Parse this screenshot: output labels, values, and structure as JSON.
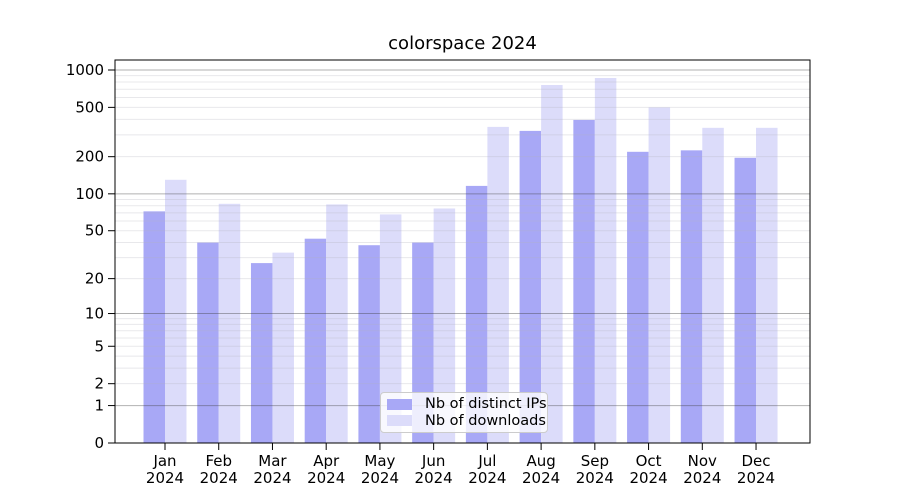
{
  "title": "colorspace 2024",
  "chart_data": {
    "type": "bar",
    "title": "colorspace 2024",
    "categories": [
      "Jan",
      "Feb",
      "Mar",
      "Apr",
      "May",
      "Jun",
      "Jul",
      "Aug",
      "Sep",
      "Oct",
      "Nov",
      "Dec"
    ],
    "x_tick_year": "2024",
    "series": [
      {
        "name": "Nb of distinct IPs",
        "color": "#a8a8f6",
        "values": [
          72,
          40,
          27,
          43,
          38,
          40,
          116,
          323,
          396,
          219,
          225,
          196
        ]
      },
      {
        "name": "Nb of downloads",
        "color": "#dcdcfa",
        "values": [
          130,
          83,
          33,
          82,
          68,
          76,
          348,
          757,
          862,
          500,
          342,
          342
        ]
      }
    ],
    "y_scale": "log10(value+1)",
    "y_ticks": [
      0,
      1,
      2,
      5,
      10,
      20,
      50,
      100,
      200,
      500,
      1000
    ],
    "ylim": [
      0,
      1200
    ],
    "grid": "on",
    "legend_position": "lower center"
  },
  "colors": {
    "background": "#ffffff",
    "axis": "#000000",
    "major_grid": "#b3b3b3",
    "minor_grid": "#ebebeb",
    "tick_text": "#000000"
  }
}
